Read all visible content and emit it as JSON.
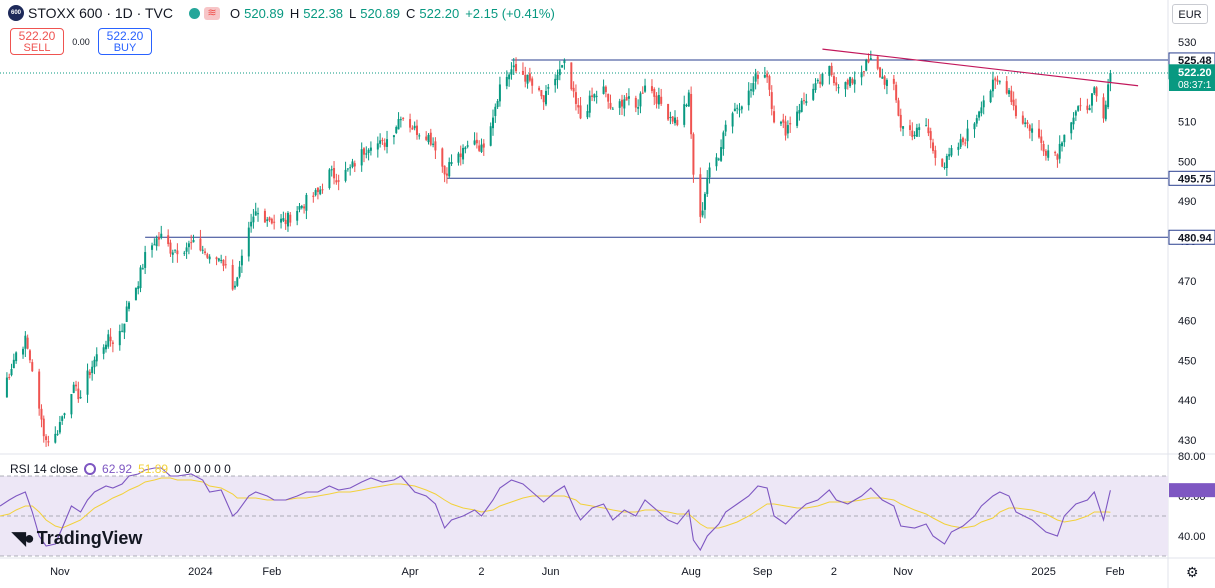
{
  "header": {
    "symbol_badge": "600",
    "title": "STOXX 600 · 1D · TVC",
    "open_label": "O",
    "open": "520.89",
    "high_label": "H",
    "high": "522.38",
    "low_label": "L",
    "low": "520.89",
    "close_label": "C",
    "close": "522.20",
    "change": "+2.15 (+0.41%)",
    "wave_glyph": "≋"
  },
  "trade": {
    "sell_price": "522.20",
    "sell_label": "SELL",
    "spread": "0.00",
    "buy_price": "522.20",
    "buy_label": "BUY"
  },
  "currency": "EUR",
  "settings_icon": "gear-icon",
  "rsi": {
    "label": "RSI 14 close",
    "value": "62.92",
    "ma_value": "51.89",
    "extra": "0 0 0 0 0 0"
  },
  "branding": {
    "name": "TradingView"
  },
  "colors": {
    "up": "#089981",
    "down": "#ef5350",
    "level_line": "#2a3f8f",
    "trend_line": "#c2185b",
    "rsi_line": "#7e57c2",
    "rsi_ma": "#f2d13a",
    "rsi_band": "#ede7f6"
  },
  "chart_data": [
    {
      "type": "candlestick",
      "title": "",
      "y_ticks": [
        430,
        440,
        450,
        460,
        470,
        480,
        490,
        500,
        510,
        520,
        530
      ],
      "ylim": [
        427,
        533
      ],
      "x_ticks": [
        "Nov",
        "2024",
        "Feb",
        "Apr",
        "2",
        "Jun",
        "Aug",
        "Sep",
        "2",
        "Nov",
        "2025",
        "Feb"
      ],
      "x_tick_dates": [
        "2023-11-01",
        "2024-01-01",
        "2024-02-01",
        "2024-04-01",
        "2024-05-02",
        "2024-06-01",
        "2024-08-01",
        "2024-09-01",
        "2024-10-02",
        "2024-11-01",
        "2025-01-01",
        "2025-02-01"
      ],
      "xlim_dates": [
        "2023-10-06",
        "2025-02-24"
      ],
      "price_labels": {
        "level_high": "525.48",
        "current": "522.20",
        "countdown": "08:37:1",
        "support_1": "495.75",
        "support_2": "480.94"
      },
      "horizontal_levels": [
        {
          "value": 525.48,
          "from": "2024-05-15",
          "to": "2025-02-24"
        },
        {
          "value": 495.75,
          "from": "2024-04-17",
          "to": "2025-02-24"
        },
        {
          "value": 480.94,
          "from": "2023-12-08",
          "to": "2025-02-24"
        }
      ],
      "trend_line": {
        "from": [
          "2024-09-27",
          528.2
        ],
        "to": [
          "2025-01-29",
          519.8
        ]
      },
      "close_path": [
        [
          "2023-10-06",
          441
        ],
        [
          "2023-10-10",
          447
        ],
        [
          "2023-10-13",
          452
        ],
        [
          "2023-10-17",
          455
        ],
        [
          "2023-10-20",
          448
        ],
        [
          "2023-10-23",
          437
        ],
        [
          "2023-10-26",
          430
        ],
        [
          "2023-10-30",
          431
        ],
        [
          "2023-11-02",
          436
        ],
        [
          "2023-11-06",
          443
        ],
        [
          "2023-11-10",
          441
        ],
        [
          "2023-11-13",
          446
        ],
        [
          "2023-11-16",
          450
        ],
        [
          "2023-11-21",
          455
        ],
        [
          "2023-11-24",
          455
        ],
        [
          "2023-11-28",
          458
        ],
        [
          "2023-12-01",
          465
        ],
        [
          "2023-12-05",
          470
        ],
        [
          "2023-12-08",
          476
        ],
        [
          "2023-12-12",
          480
        ],
        [
          "2023-12-15",
          481
        ],
        [
          "2023-12-19",
          478
        ],
        [
          "2023-12-22",
          478
        ],
        [
          "2023-12-28",
          479
        ],
        [
          "2024-01-02",
          478
        ],
        [
          "2024-01-05",
          475
        ],
        [
          "2024-01-10",
          476
        ],
        [
          "2024-01-15",
          469
        ],
        [
          "2024-01-17",
          470
        ],
        [
          "2024-01-22",
          482
        ],
        [
          "2024-01-25",
          487
        ],
        [
          "2024-01-30",
          486
        ],
        [
          "2024-02-02",
          485
        ],
        [
          "2024-02-07",
          485
        ],
        [
          "2024-02-12",
          488
        ],
        [
          "2024-02-16",
          490
        ],
        [
          "2024-02-21",
          492
        ],
        [
          "2024-02-26",
          497
        ],
        [
          "2024-03-01",
          496
        ],
        [
          "2024-03-06",
          498
        ],
        [
          "2024-03-11",
          502
        ],
        [
          "2024-03-15",
          505
        ],
        [
          "2024-03-20",
          504
        ],
        [
          "2024-03-25",
          508
        ],
        [
          "2024-03-28",
          512
        ],
        [
          "2024-04-03",
          508
        ],
        [
          "2024-04-08",
          507
        ],
        [
          "2024-04-12",
          504
        ],
        [
          "2024-04-16",
          497
        ],
        [
          "2024-04-19",
          500
        ],
        [
          "2024-04-24",
          502
        ],
        [
          "2024-04-29",
          506
        ],
        [
          "2024-05-02",
          503
        ],
        [
          "2024-05-07",
          512
        ],
        [
          "2024-05-10",
          519
        ],
        [
          "2024-05-15",
          523
        ],
        [
          "2024-05-20",
          522
        ],
        [
          "2024-05-24",
          519
        ],
        [
          "2024-05-29",
          515
        ],
        [
          "2024-06-03",
          521
        ],
        [
          "2024-06-07",
          524
        ],
        [
          "2024-06-12",
          514
        ],
        [
          "2024-06-14",
          511
        ],
        [
          "2024-06-19",
          516
        ],
        [
          "2024-06-24",
          518
        ],
        [
          "2024-06-28",
          512
        ],
        [
          "2024-07-03",
          516
        ],
        [
          "2024-07-08",
          513
        ],
        [
          "2024-07-12",
          520
        ],
        [
          "2024-07-17",
          516
        ],
        [
          "2024-07-22",
          512
        ],
        [
          "2024-07-26",
          510
        ],
        [
          "2024-07-31",
          516
        ],
        [
          "2024-08-02",
          497
        ],
        [
          "2024-08-05",
          485
        ],
        [
          "2024-08-08",
          496
        ],
        [
          "2024-08-13",
          502
        ],
        [
          "2024-08-16",
          510
        ],
        [
          "2024-08-21",
          514
        ],
        [
          "2024-08-26",
          517
        ],
        [
          "2024-08-30",
          522
        ],
        [
          "2024-09-03",
          522
        ],
        [
          "2024-09-06",
          511
        ],
        [
          "2024-09-11",
          508
        ],
        [
          "2024-09-16",
          513
        ],
        [
          "2024-09-20",
          516
        ],
        [
          "2024-09-25",
          519
        ],
        [
          "2024-09-30",
          523
        ],
        [
          "2024-10-03",
          520
        ],
        [
          "2024-10-08",
          519
        ],
        [
          "2024-10-14",
          523
        ],
        [
          "2024-10-18",
          525
        ],
        [
          "2024-10-23",
          521
        ],
        [
          "2024-10-28",
          518
        ],
        [
          "2024-10-31",
          509
        ],
        [
          "2024-11-06",
          507
        ],
        [
          "2024-11-11",
          509
        ],
        [
          "2024-11-14",
          503
        ],
        [
          "2024-11-19",
          499
        ],
        [
          "2024-11-22",
          502
        ],
        [
          "2024-11-27",
          505
        ],
        [
          "2024-12-02",
          510
        ],
        [
          "2024-12-05",
          515
        ],
        [
          "2024-12-10",
          519
        ],
        [
          "2024-12-13",
          520
        ],
        [
          "2024-12-17",
          518
        ],
        [
          "2024-12-20",
          512
        ],
        [
          "2024-12-27",
          508
        ],
        [
          "2025-01-02",
          503
        ],
        [
          "2025-01-07",
          502
        ],
        [
          "2025-01-10",
          508
        ],
        [
          "2025-01-15",
          512
        ],
        [
          "2025-01-20",
          514
        ],
        [
          "2025-01-23",
          517
        ],
        [
          "2025-01-27",
          510
        ],
        [
          "2025-01-29",
          518
        ],
        [
          "2025-01-30",
          522.2
        ]
      ]
    },
    {
      "type": "line",
      "title": "",
      "y_ticks": [
        40,
        60,
        80
      ],
      "ylim": [
        30,
        80
      ],
      "band": [
        30,
        70
      ],
      "mid_level": 50,
      "series": [
        {
          "name": "",
          "x_source": "close_path",
          "values": [
            55,
            58,
            60,
            62,
            52,
            40,
            35,
            36,
            44,
            55,
            52,
            58,
            62,
            65,
            64,
            66,
            70,
            71,
            73,
            74,
            74,
            70,
            70,
            71,
            68,
            62,
            63,
            50,
            52,
            60,
            62,
            60,
            58,
            58,
            60,
            62,
            62,
            65,
            63,
            64,
            67,
            69,
            67,
            68,
            70,
            62,
            60,
            56,
            44,
            48,
            50,
            53,
            50,
            58,
            64,
            68,
            66,
            62,
            57,
            62,
            65,
            52,
            48,
            54,
            56,
            48,
            53,
            50,
            58,
            53,
            48,
            46,
            53,
            38,
            33,
            40,
            46,
            52,
            56,
            60,
            65,
            64,
            50,
            46,
            52,
            56,
            58,
            63,
            58,
            56,
            60,
            64,
            58,
            55,
            45,
            44,
            46,
            40,
            36,
            42,
            45,
            50,
            55,
            60,
            62,
            60,
            52,
            48,
            42,
            40,
            50,
            56,
            58,
            62,
            48,
            58,
            62.92
          ]
        },
        {
          "name": "",
          "x_source": "close_path",
          "values": [
            50,
            51,
            53,
            55,
            55,
            52,
            48,
            45,
            44,
            46,
            48,
            51,
            54,
            57,
            59,
            61,
            63,
            65,
            67,
            68,
            69,
            69,
            68,
            68,
            67,
            65,
            64,
            61,
            59,
            59,
            59,
            58,
            58,
            58,
            59,
            59,
            60,
            61,
            62,
            62,
            63,
            64,
            65,
            66,
            66,
            65,
            63,
            61,
            58,
            56,
            54,
            53,
            52,
            53,
            55,
            57,
            59,
            60,
            60,
            60,
            60,
            58,
            56,
            55,
            54,
            53,
            52,
            52,
            53,
            53,
            52,
            51,
            51,
            49,
            46,
            44,
            44,
            45,
            47,
            50,
            53,
            56,
            56,
            55,
            54,
            54,
            55,
            57,
            57,
            57,
            58,
            59,
            59,
            58,
            56,
            53,
            51,
            49,
            46,
            45,
            44,
            45,
            47,
            49,
            52,
            54,
            54,
            53,
            51,
            48,
            47,
            48,
            50,
            52,
            52,
            52,
            51.89
          ]
        }
      ]
    }
  ]
}
